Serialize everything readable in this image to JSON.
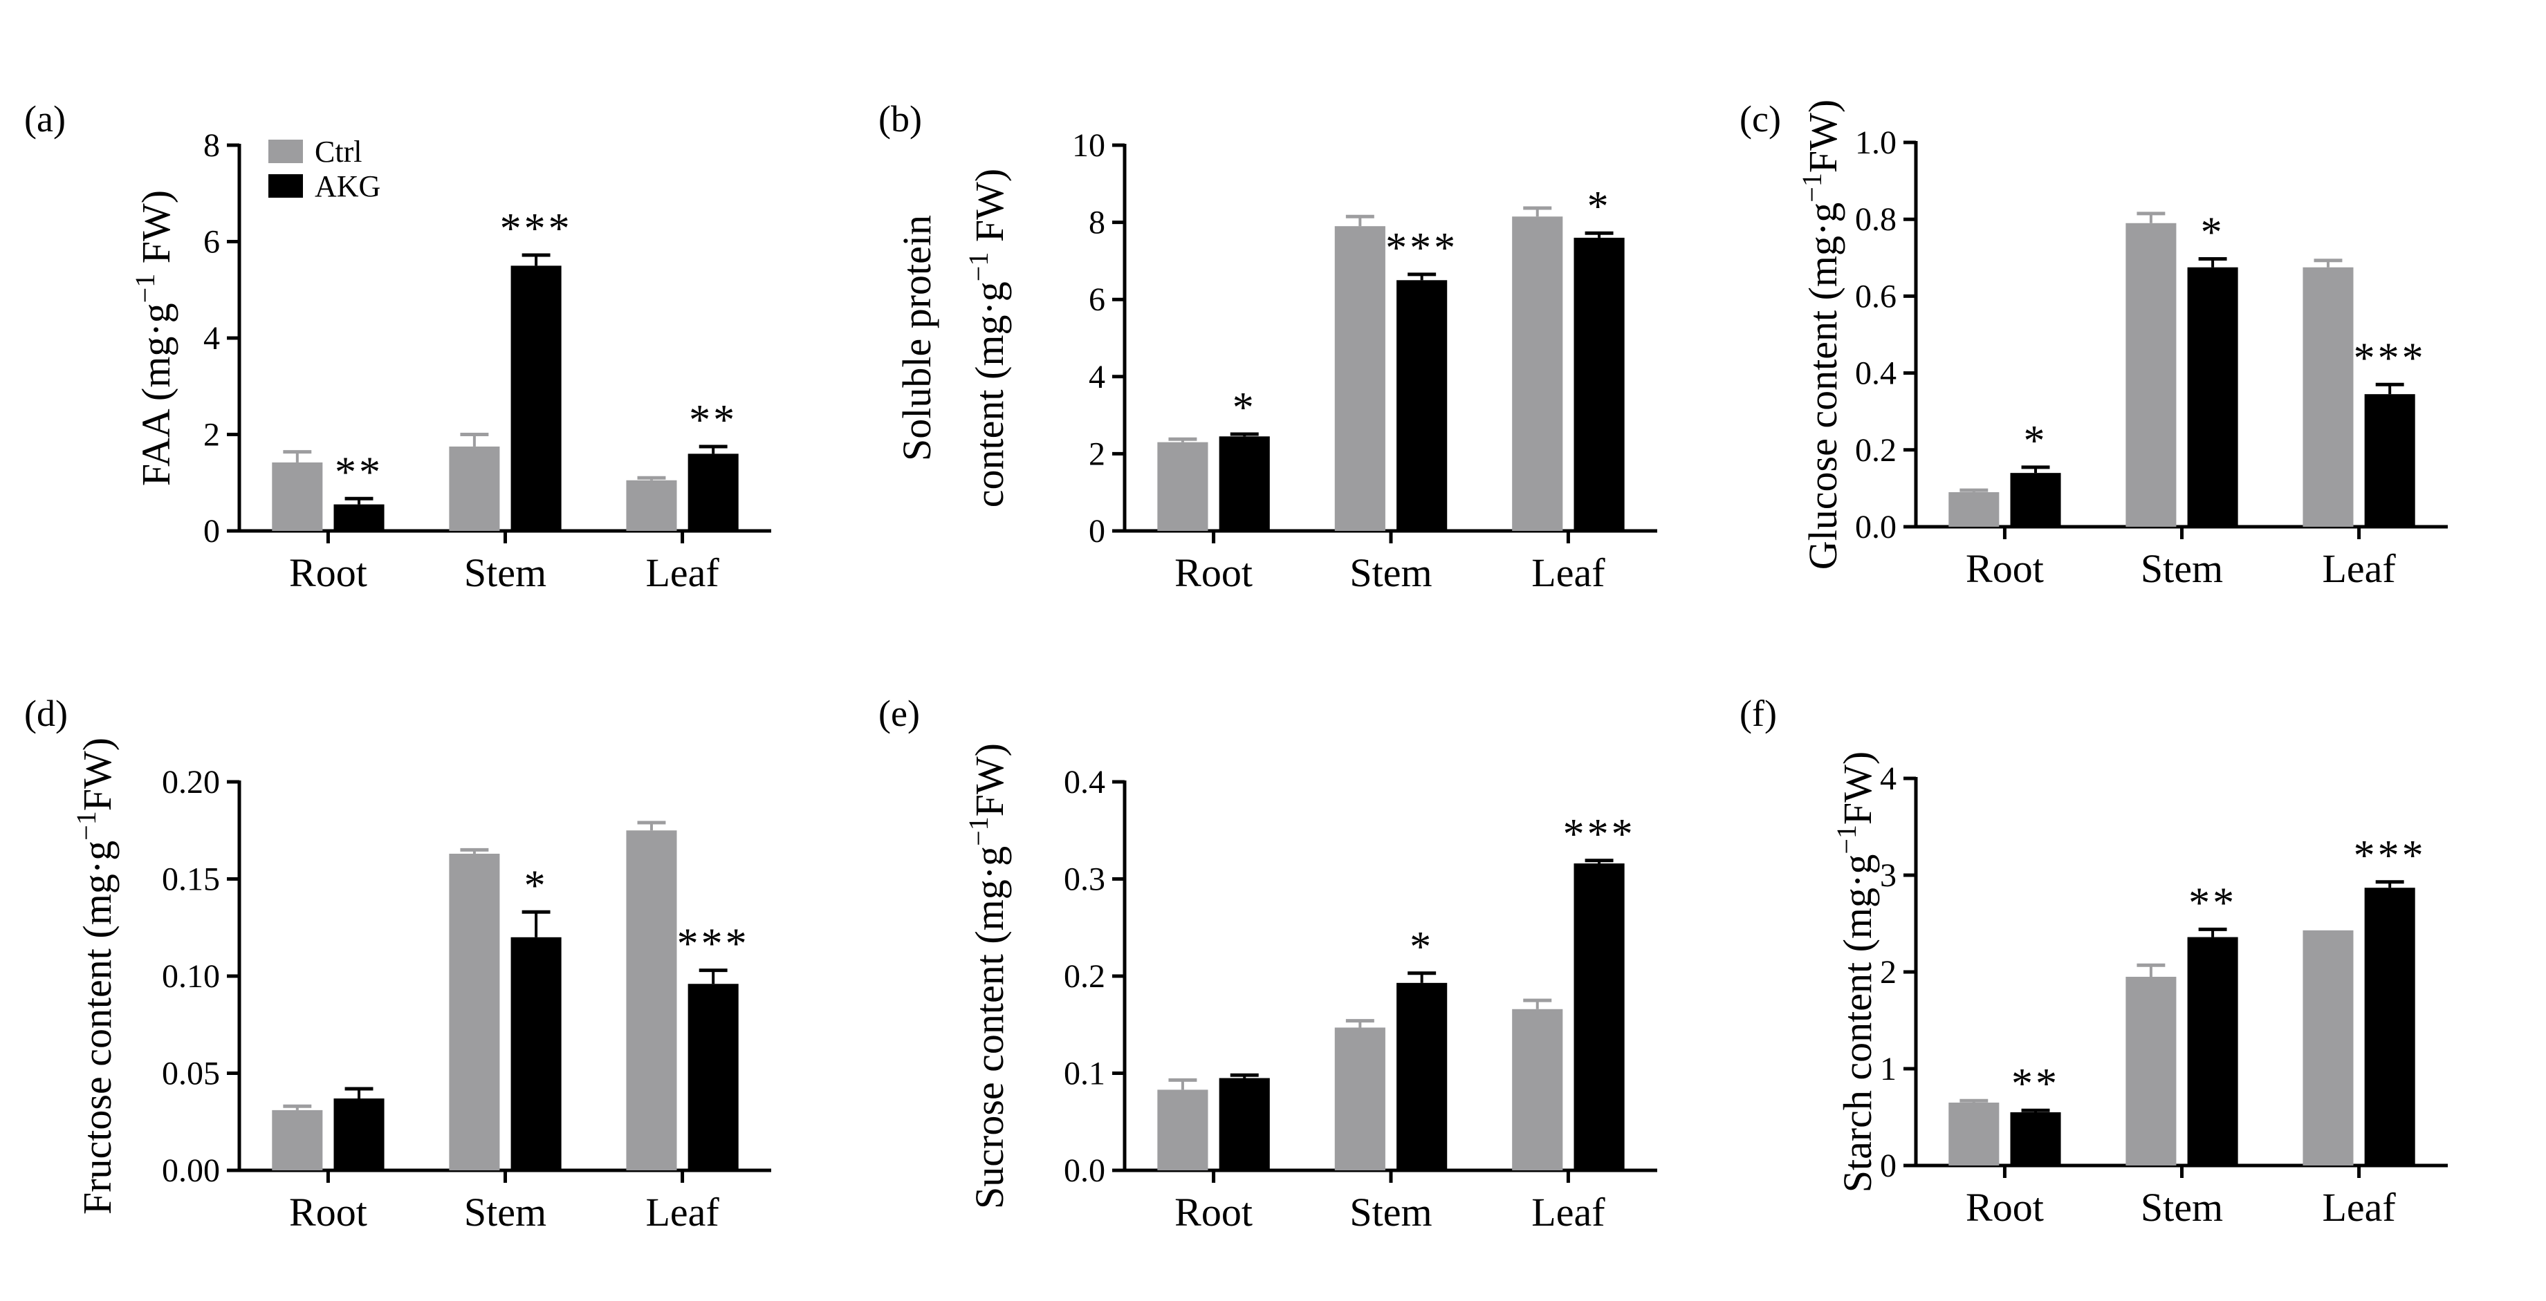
{
  "legend": {
    "series": [
      "Ctrl",
      "AKG"
    ]
  },
  "colors": {
    "ctrl": "#9d9d9f",
    "akg": "#000000",
    "axis": "#000000"
  },
  "chart_data": [
    {
      "panel": "(a)",
      "type": "bar",
      "title": "",
      "categories": [
        "Root",
        "Stem",
        "Leaf"
      ],
      "ylabel": {
        "main": "FAA (mg·g",
        "sup": "−1",
        "tail": " FW)"
      },
      "ylim": [
        0,
        8
      ],
      "yticks": [
        "0",
        "2",
        "4",
        "6",
        "8"
      ],
      "series": [
        {
          "name": "Ctrl",
          "values": [
            1.42,
            1.75,
            1.05
          ],
          "errors": [
            0.22,
            0.25,
            0.05
          ]
        },
        {
          "name": "AKG",
          "values": [
            0.55,
            5.5,
            1.6
          ],
          "errors": [
            0.12,
            0.22,
            0.15
          ]
        }
      ],
      "significance": [
        "**",
        "***",
        "**"
      ],
      "legend": "top-left"
    },
    {
      "panel": "(b)",
      "type": "bar",
      "title": "",
      "categories": [
        "Root",
        "Stem",
        "Leaf"
      ],
      "ylabel": {
        "line1": "Soluble protein",
        "main": "content (mg·g",
        "sup": "−1",
        "tail": " FW)"
      },
      "ylim": [
        0,
        10
      ],
      "yticks": [
        "0",
        "2",
        "4",
        "6",
        "8",
        "10"
      ],
      "series": [
        {
          "name": "Ctrl",
          "values": [
            2.3,
            7.9,
            8.15
          ],
          "errors": [
            0.08,
            0.25,
            0.22
          ]
        },
        {
          "name": "AKG",
          "values": [
            2.45,
            6.5,
            7.6
          ],
          "errors": [
            0.06,
            0.15,
            0.12
          ]
        }
      ],
      "significance": [
        "*",
        "***",
        "*"
      ]
    },
    {
      "panel": "(c)",
      "type": "bar",
      "title": "",
      "categories": [
        "Root",
        "Stem",
        "Leaf"
      ],
      "ylabel": {
        "main": "Glucose content (mg·g",
        "sup": "−1",
        "tail": "FW)"
      },
      "ylim": [
        0,
        1.0
      ],
      "yticks": [
        "0.0",
        "0.2",
        "0.4",
        "0.6",
        "0.8",
        "1.0"
      ],
      "series": [
        {
          "name": "Ctrl",
          "values": [
            0.09,
            0.79,
            0.675
          ],
          "errors": [
            0.005,
            0.025,
            0.018
          ]
        },
        {
          "name": "AKG",
          "values": [
            0.14,
            0.675,
            0.345
          ],
          "errors": [
            0.015,
            0.022,
            0.025
          ]
        }
      ],
      "significance": [
        "*",
        "*",
        "***"
      ]
    },
    {
      "panel": "(d)",
      "type": "bar",
      "title": "",
      "categories": [
        "Root",
        "Stem",
        "Leaf"
      ],
      "ylabel": {
        "main": "Fructose content (mg·g",
        "sup": "−1",
        "tail": "FW)"
      },
      "ylim": [
        0,
        0.2
      ],
      "yticks": [
        "0.00",
        "0.05",
        "0.10",
        "0.15",
        "0.20"
      ],
      "series": [
        {
          "name": "Ctrl",
          "values": [
            0.031,
            0.163,
            0.175
          ],
          "errors": [
            0.002,
            0.002,
            0.004
          ]
        },
        {
          "name": "AKG",
          "values": [
            0.037,
            0.12,
            0.096
          ],
          "errors": [
            0.005,
            0.013,
            0.007
          ]
        }
      ],
      "significance": [
        "",
        "*",
        "***"
      ]
    },
    {
      "panel": "(e)",
      "type": "bar",
      "title": "",
      "categories": [
        "Root",
        "Stem",
        "Leaf"
      ],
      "ylabel": {
        "main": "Sucrose content (mg·g",
        "sup": "−1",
        "tail": "FW)"
      },
      "ylim": [
        0,
        0.4
      ],
      "yticks": [
        "0.0",
        "0.1",
        "0.2",
        "0.3",
        "0.4"
      ],
      "series": [
        {
          "name": "Ctrl",
          "values": [
            0.083,
            0.147,
            0.166
          ],
          "errors": [
            0.01,
            0.007,
            0.009
          ]
        },
        {
          "name": "AKG",
          "values": [
            0.095,
            0.193,
            0.316
          ],
          "errors": [
            0.003,
            0.01,
            0.003
          ]
        }
      ],
      "significance": [
        "",
        "*",
        "***"
      ]
    },
    {
      "panel": "(f)",
      "type": "bar",
      "title": "",
      "categories": [
        "Root",
        "Stem",
        "Leaf"
      ],
      "ylabel": {
        "main": "Starch content (mg·g",
        "sup": "−1",
        "tail": "FW)"
      },
      "ylim": [
        0,
        4
      ],
      "yticks": [
        "0",
        "1",
        "2",
        "3",
        "4"
      ],
      "series": [
        {
          "name": "Ctrl",
          "values": [
            0.65,
            1.95,
            2.43
          ],
          "errors": [
            0.02,
            0.12,
            0.0
          ]
        },
        {
          "name": "AKG",
          "values": [
            0.55,
            2.36,
            2.87
          ],
          "errors": [
            0.02,
            0.08,
            0.06
          ]
        }
      ],
      "significance": [
        "**",
        "**",
        "***"
      ]
    }
  ]
}
